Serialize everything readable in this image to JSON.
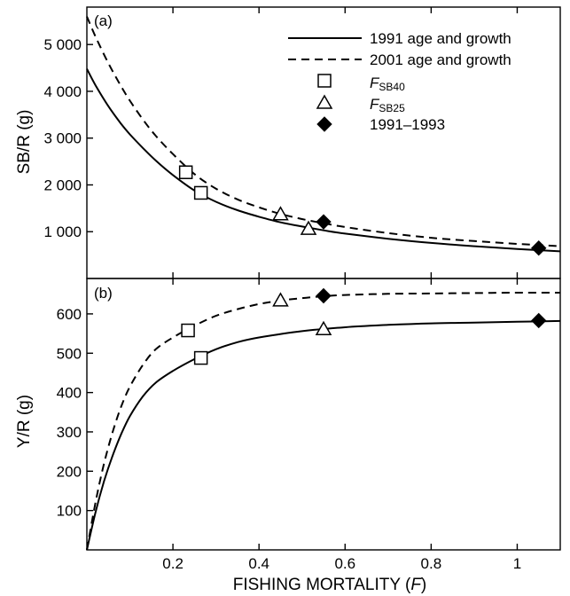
{
  "chart_data": [
    {
      "panel": "(a)",
      "type": "line",
      "ylabel": "SB/R (g)",
      "xlim": [
        0,
        1.1
      ],
      "ylim": [
        0,
        5800
      ],
      "y_ticks": [
        1000,
        2000,
        3000,
        4000,
        5000
      ],
      "y_tick_labels": [
        "1 000",
        "2 000",
        "3 000",
        "4 000",
        "5 000"
      ],
      "series": [
        {
          "name": "1991 age and growth",
          "style": "solid",
          "x": [
            0.0,
            0.02,
            0.05,
            0.08,
            0.1,
            0.13,
            0.16,
            0.2,
            0.25,
            0.3,
            0.35,
            0.4,
            0.45,
            0.5,
            0.55,
            0.6,
            0.7,
            0.8,
            0.9,
            1.0,
            1.1
          ],
          "y": [
            4480,
            4130,
            3680,
            3300,
            3080,
            2790,
            2520,
            2210,
            1880,
            1640,
            1460,
            1320,
            1200,
            1110,
            1030,
            960,
            850,
            760,
            690,
            630,
            580
          ]
        },
        {
          "name": "2001 age and growth",
          "style": "dashed",
          "x": [
            0.0,
            0.02,
            0.05,
            0.08,
            0.1,
            0.13,
            0.16,
            0.2,
            0.25,
            0.3,
            0.35,
            0.4,
            0.45,
            0.5,
            0.55,
            0.6,
            0.7,
            0.8,
            0.9,
            1.0,
            1.1
          ],
          "y": [
            5600,
            5170,
            4600,
            4100,
            3800,
            3400,
            3050,
            2660,
            2230,
            1920,
            1690,
            1520,
            1380,
            1270,
            1180,
            1100,
            970,
            870,
            800,
            740,
            690
          ]
        }
      ],
      "markers": [
        {
          "name": "F_SB40",
          "symbol": "square",
          "points": [
            [
              0.23,
              2270
            ],
            [
              0.265,
              1830
            ]
          ]
        },
        {
          "name": "F_SB25",
          "symbol": "triangle",
          "points": [
            [
              0.45,
              1370
            ],
            [
              0.515,
              1060
            ]
          ]
        },
        {
          "name": "1991–1993",
          "symbol": "diamond",
          "points": [
            [
              0.55,
              1210
            ],
            [
              1.05,
              650
            ]
          ]
        }
      ]
    },
    {
      "panel": "(b)",
      "type": "line",
      "xlabel_main": "FISHING MORTALITY (",
      "xlabel_italic": "F",
      "xlabel_close": ")",
      "ylabel": "Y/R (g)",
      "xlim": [
        0,
        1.1
      ],
      "ylim": [
        0,
        690
      ],
      "x_ticks": [
        0.2,
        0.4,
        0.6,
        0.8,
        1.0
      ],
      "x_tick_labels": [
        "0.2",
        "0.4",
        "0.6",
        "0.8",
        "1"
      ],
      "y_ticks": [
        100,
        200,
        300,
        400,
        500,
        600
      ],
      "y_tick_labels": [
        "100",
        "200",
        "300",
        "400",
        "500",
        "600"
      ],
      "series": [
        {
          "name": "1991 age and growth",
          "style": "solid",
          "x": [
            0.0,
            0.02,
            0.04,
            0.06,
            0.08,
            0.1,
            0.13,
            0.16,
            0.2,
            0.25,
            0.3,
            0.35,
            0.4,
            0.5,
            0.6,
            0.7,
            0.8,
            0.9,
            1.0,
            1.1
          ],
          "y": [
            0,
            95,
            175,
            240,
            295,
            340,
            390,
            425,
            455,
            485,
            510,
            528,
            540,
            556,
            566,
            572,
            576,
            578,
            580,
            582
          ]
        },
        {
          "name": "2001 age and growth",
          "style": "dashed",
          "x": [
            0.0,
            0.02,
            0.04,
            0.06,
            0.08,
            0.1,
            0.13,
            0.16,
            0.2,
            0.25,
            0.3,
            0.35,
            0.4,
            0.45,
            0.5,
            0.55,
            0.6,
            0.7,
            0.8,
            0.9,
            1.0,
            1.1
          ],
          "y": [
            0,
            120,
            220,
            300,
            365,
            415,
            470,
            510,
            540,
            570,
            595,
            612,
            625,
            634,
            640,
            645,
            648,
            651,
            652,
            653,
            654,
            654
          ]
        }
      ],
      "markers": [
        {
          "name": "F_SB40",
          "symbol": "square",
          "points": [
            [
              0.235,
              558
            ],
            [
              0.265,
              488
            ]
          ]
        },
        {
          "name": "F_SB25",
          "symbol": "triangle",
          "points": [
            [
              0.45,
              634
            ],
            [
              0.55,
              561
            ]
          ]
        },
        {
          "name": "1991–1993",
          "symbol": "diamond",
          "points": [
            [
              0.55,
              646
            ],
            [
              1.05,
              583
            ]
          ]
        }
      ]
    }
  ],
  "legend": {
    "placement": "top-right of panel (a)",
    "entries": [
      {
        "symbol": "line-solid",
        "label": "1991 age and growth"
      },
      {
        "symbol": "line-dashed",
        "label": "2001 age and growth"
      },
      {
        "symbol": "square",
        "label_main": "F",
        "label_sub": "SB40"
      },
      {
        "symbol": "triangle",
        "label_main": "F",
        "label_sub": "SB25"
      },
      {
        "symbol": "diamond",
        "label": "1991–1993"
      }
    ]
  },
  "colors": {
    "ink": "#000000",
    "background": "#ffffff"
  }
}
